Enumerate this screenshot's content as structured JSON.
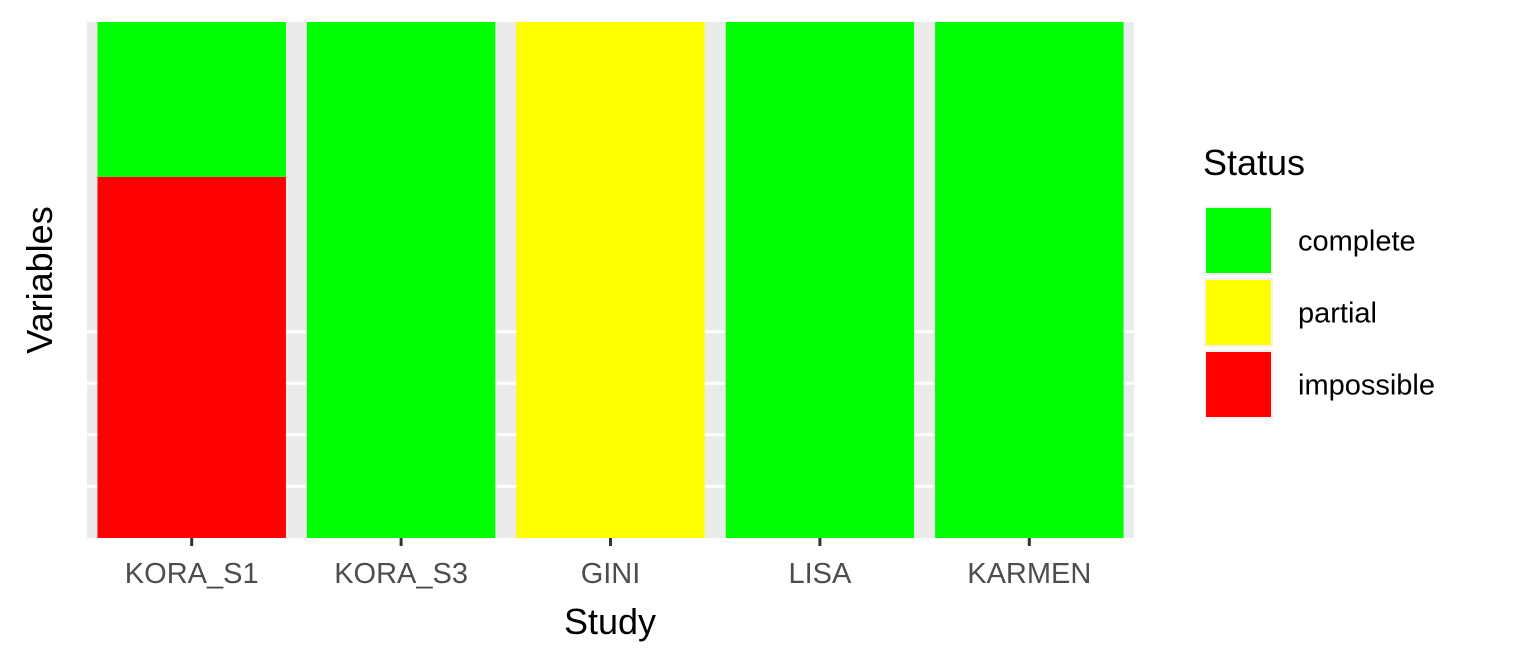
{
  "chart_data": {
    "type": "bar",
    "stacked": true,
    "normalized": true,
    "categories": [
      "KORA_S1",
      "KORA_S3",
      "GINI",
      "LISA",
      "KARMEN"
    ],
    "series": [
      {
        "name": "impossible",
        "color": "#FF0000",
        "values": [
          0.7,
          0,
          0,
          0,
          0
        ]
      },
      {
        "name": "partial",
        "color": "#FFFF00",
        "values": [
          0,
          0,
          1,
          0,
          0
        ]
      },
      {
        "name": "complete",
        "color": "#00FF00",
        "values": [
          0.3,
          1,
          0,
          1,
          1
        ]
      }
    ],
    "xlabel": "Study",
    "ylabel": "Variables",
    "ylim": [
      0,
      1
    ],
    "y_tick_labels_shown": false,
    "grid": true,
    "panel_background": "#EBEBEB",
    "legend": {
      "title": "Status",
      "position": "right",
      "items": [
        {
          "label": "complete",
          "color": "#00FF00"
        },
        {
          "label": "partial",
          "color": "#FFFF00"
        },
        {
          "label": "impossible",
          "color": "#FF0000"
        }
      ]
    }
  }
}
